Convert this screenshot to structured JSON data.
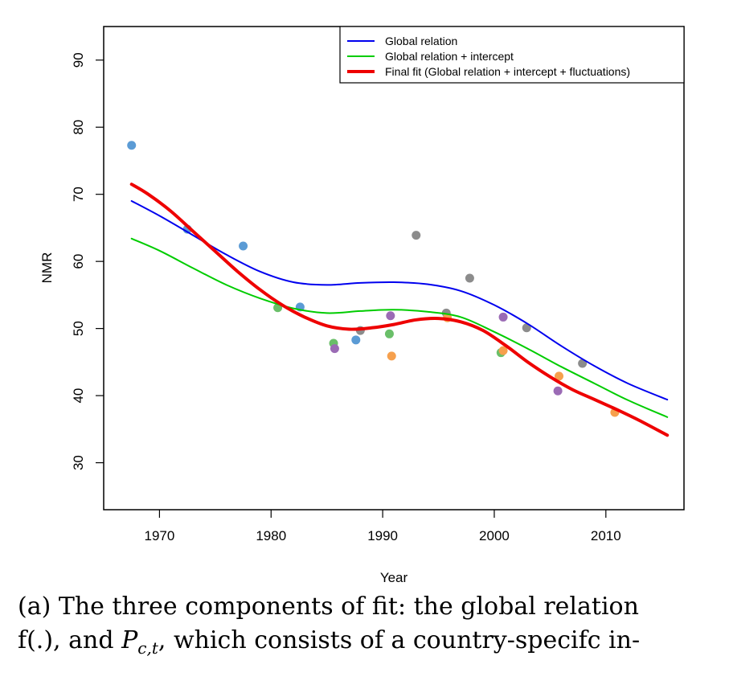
{
  "chart_data": {
    "type": "scatter",
    "title": "",
    "xlabel": "Year",
    "ylabel": "NMR",
    "xlim": [
      1965,
      2017
    ],
    "ylim": [
      23,
      95
    ],
    "xticks": [
      1970,
      1980,
      1990,
      2000,
      2010
    ],
    "yticks": [
      30,
      40,
      50,
      60,
      70,
      80,
      90
    ],
    "xtick_labels": [
      "1970",
      "1980",
      "1990",
      "2000",
      "2010"
    ],
    "ytick_labels": [
      "30",
      "40",
      "50",
      "60",
      "70",
      "80",
      "90"
    ],
    "legend_position": "top-right",
    "series": [
      {
        "name": "Global relation",
        "type": "line",
        "color": "#0000ee",
        "x": [
          1967.5,
          1970,
          1973,
          1976,
          1979,
          1982,
          1985,
          1988,
          1991,
          1994,
          1997,
          2000,
          2003,
          2006,
          2009,
          2012,
          2015.5
        ],
        "y": [
          69,
          66.8,
          63.9,
          61,
          58.5,
          56.9,
          56.5,
          56.8,
          56.9,
          56.6,
          55.6,
          53.5,
          50.7,
          47.4,
          44.4,
          41.8,
          39.4
        ]
      },
      {
        "name": "Global relation + intercept",
        "type": "line",
        "color": "#00cc00",
        "x": [
          1967.5,
          1970,
          1973,
          1976,
          1979,
          1982,
          1985,
          1988,
          1991,
          1994,
          1997,
          2000,
          2003,
          2006,
          2009,
          2012,
          2015.5
        ],
        "y": [
          63.4,
          61.6,
          59,
          56.5,
          54.5,
          53,
          52.3,
          52.6,
          52.8,
          52.5,
          51.7,
          49.5,
          47,
          44.3,
          41.8,
          39.3,
          36.8
        ]
      },
      {
        "name": "Final fit (Global relation + intercept + fluctuations)",
        "type": "line",
        "color": "#ee0000",
        "x": [
          1967.5,
          1969,
          1971,
          1973,
          1975,
          1977,
          1979,
          1981,
          1983,
          1985,
          1987,
          1989,
          1991,
          1993,
          1995,
          1997,
          1999,
          2001,
          2003,
          2005,
          2007,
          2009,
          2011,
          2013,
          2015.5
        ],
        "y": [
          71.5,
          70,
          67.5,
          64.5,
          61.5,
          58.5,
          55.8,
          53.5,
          51.7,
          50.4,
          49.9,
          50.1,
          50.6,
          51.3,
          51.5,
          51,
          49.7,
          47.5,
          45,
          42.8,
          40.9,
          39.4,
          37.9,
          36.3,
          34.1
        ]
      }
    ],
    "points": [
      {
        "x": 1967.5,
        "y": 77.3,
        "color": "#5b9bd5"
      },
      {
        "x": 1972.5,
        "y": 64.8,
        "color": "#5b9bd5"
      },
      {
        "x": 1977.5,
        "y": 62.3,
        "color": "#5b9bd5"
      },
      {
        "x": 1980.6,
        "y": 53.1,
        "color": "#6abf69"
      },
      {
        "x": 1982.6,
        "y": 53.2,
        "color": "#5b9bd5"
      },
      {
        "x": 1985.6,
        "y": 47.8,
        "color": "#6abf69"
      },
      {
        "x": 1985.7,
        "y": 47.0,
        "color": "#9b6bb5"
      },
      {
        "x": 1987.6,
        "y": 48.3,
        "color": "#5b9bd5"
      },
      {
        "x": 1988.0,
        "y": 49.7,
        "color": "#8c8c8c"
      },
      {
        "x": 1990.7,
        "y": 51.9,
        "color": "#9b6bb5"
      },
      {
        "x": 1990.6,
        "y": 49.2,
        "color": "#6abf69"
      },
      {
        "x": 1990.8,
        "y": 45.9,
        "color": "#f6a04d"
      },
      {
        "x": 1993.0,
        "y": 63.9,
        "color": "#8c8c8c"
      },
      {
        "x": 1995.7,
        "y": 52.3,
        "color": "#8c8c8c"
      },
      {
        "x": 1995.8,
        "y": 51.6,
        "color": "#f6a04d"
      },
      {
        "x": 1997.8,
        "y": 57.5,
        "color": "#8c8c8c"
      },
      {
        "x": 2000.6,
        "y": 46.4,
        "color": "#6abf69"
      },
      {
        "x": 2000.8,
        "y": 46.7,
        "color": "#f6a04d"
      },
      {
        "x": 2000.8,
        "y": 51.7,
        "color": "#9b6bb5"
      },
      {
        "x": 2002.9,
        "y": 50.1,
        "color": "#8c8c8c"
      },
      {
        "x": 2005.7,
        "y": 40.7,
        "color": "#9b6bb5"
      },
      {
        "x": 2005.8,
        "y": 42.9,
        "color": "#f6a04d"
      },
      {
        "x": 2007.9,
        "y": 44.8,
        "color": "#8c8c8c"
      },
      {
        "x": 2010.8,
        "y": 37.5,
        "color": "#f6a04d"
      }
    ]
  },
  "caption": {
    "line1": "(a) The three components of fit: the global relation",
    "line2": "f(.), and P_c,t, which consists of a country-specifc in-",
    "line2_pre": "f(.), and ",
    "line2_var": "P",
    "line2_sub": "c,t",
    "line2_post": ", which consists of a country-specifc in-"
  }
}
